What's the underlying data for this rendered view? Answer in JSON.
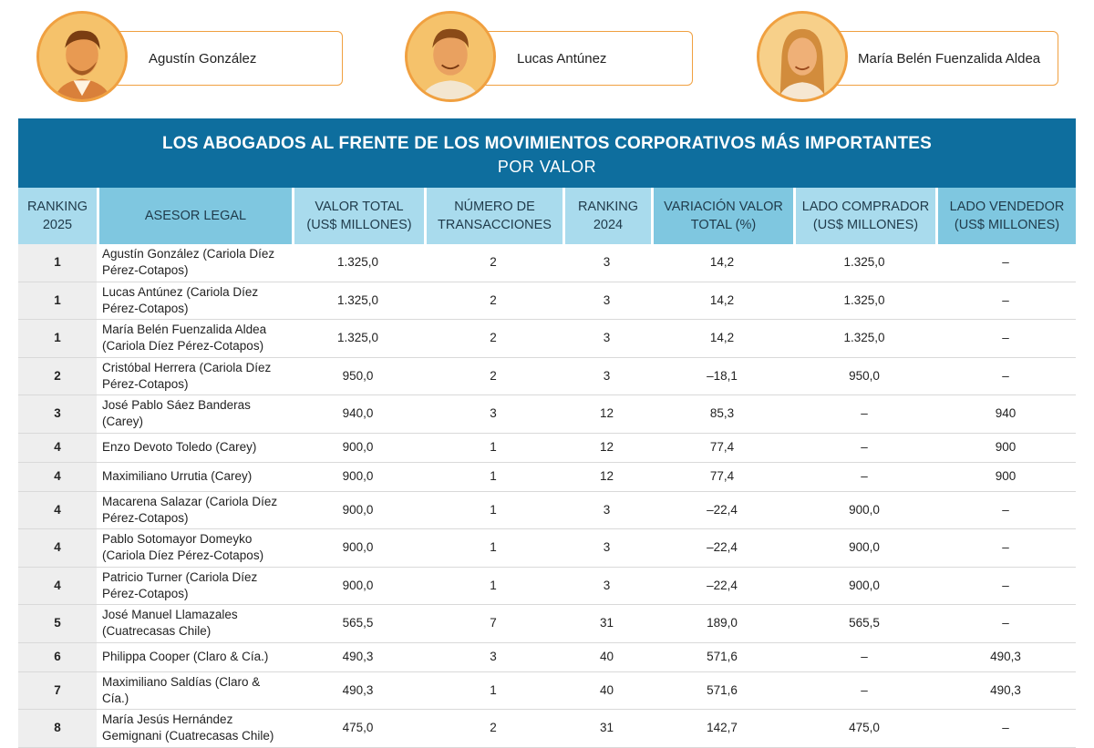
{
  "profiles": [
    {
      "name": "Agustín González"
    },
    {
      "name": "Lucas Antúnez"
    },
    {
      "name": "María Belén Fuenzalida Aldea"
    }
  ],
  "title": "LOS ABOGADOS AL FRENTE DE LOS MOVIMIENTOS CORPORATIVOS MÁS IMPORTANTES",
  "subtitle": "POR VALOR",
  "headers": [
    "RANKING 2025",
    "ASESOR LEGAL",
    "VALOR TOTAL (US$ MILLONES)",
    "NÚMERO DE TRANSACCIONES",
    "RANKING 2024",
    "VARIACIÓN VALOR TOTAL (%)",
    "LADO COMPRADOR (US$ MILLONES)",
    "LADO VENDEDOR (US$ MILLONES)"
  ],
  "rows": [
    [
      "1",
      "Agustín González (Cariola Díez Pérez-Cotapos)",
      "1.325,0",
      "2",
      "3",
      "14,2",
      "1.325,0",
      "–"
    ],
    [
      "1",
      "Lucas Antúnez (Cariola Díez Pérez-Cotapos)",
      "1.325,0",
      "2",
      "3",
      "14,2",
      "1.325,0",
      "–"
    ],
    [
      "1",
      "María Belén Fuenzalida Aldea (Cariola Díez Pérez-Cotapos)",
      "1.325,0",
      "2",
      "3",
      "14,2",
      "1.325,0",
      "–"
    ],
    [
      "2",
      "Cristóbal Herrera (Cariola Díez Pérez-Cotapos)",
      "950,0",
      "2",
      "3",
      "–18,1",
      "950,0",
      "–"
    ],
    [
      "3",
      "José Pablo Sáez Banderas (Carey)",
      "940,0",
      "3",
      "12",
      "85,3",
      "–",
      "940"
    ],
    [
      "4",
      "Enzo Devoto Toledo (Carey)",
      "900,0",
      "1",
      "12",
      "77,4",
      "–",
      "900"
    ],
    [
      "4",
      "Maximiliano Urrutia (Carey)",
      "900,0",
      "1",
      "12",
      "77,4",
      "–",
      "900"
    ],
    [
      "4",
      "Macarena Salazar (Cariola Díez Pérez-Cotapos)",
      "900,0",
      "1",
      "3",
      "–22,4",
      "900,0",
      "–"
    ],
    [
      "4",
      "Pablo Sotomayor Domeyko (Cariola Díez Pérez-Cotapos)",
      "900,0",
      "1",
      "3",
      "–22,4",
      "900,0",
      "–"
    ],
    [
      "4",
      "Patricio Turner (Cariola Díez Pérez-Cotapos)",
      "900,0",
      "1",
      "3",
      "–22,4",
      "900,0",
      "–"
    ],
    [
      "5",
      "José Manuel Llamazales (Cuatrecasas Chile)",
      "565,5",
      "7",
      "31",
      "189,0",
      "565,5",
      "–"
    ],
    [
      "6",
      "Philippa Cooper (Claro & Cía.)",
      "490,3",
      "3",
      "40",
      "571,6",
      "–",
      "490,3"
    ],
    [
      "7",
      "Maximiliano Saldías (Claro & Cía.)",
      "490,3",
      "1",
      "40",
      "571,6",
      "–",
      "490,3"
    ],
    [
      "8",
      "María Jesús Hernández Gemignani (Cuatrecasas Chile)",
      "475,0",
      "2",
      "31",
      "142,7",
      "475,0",
      "–"
    ]
  ]
}
